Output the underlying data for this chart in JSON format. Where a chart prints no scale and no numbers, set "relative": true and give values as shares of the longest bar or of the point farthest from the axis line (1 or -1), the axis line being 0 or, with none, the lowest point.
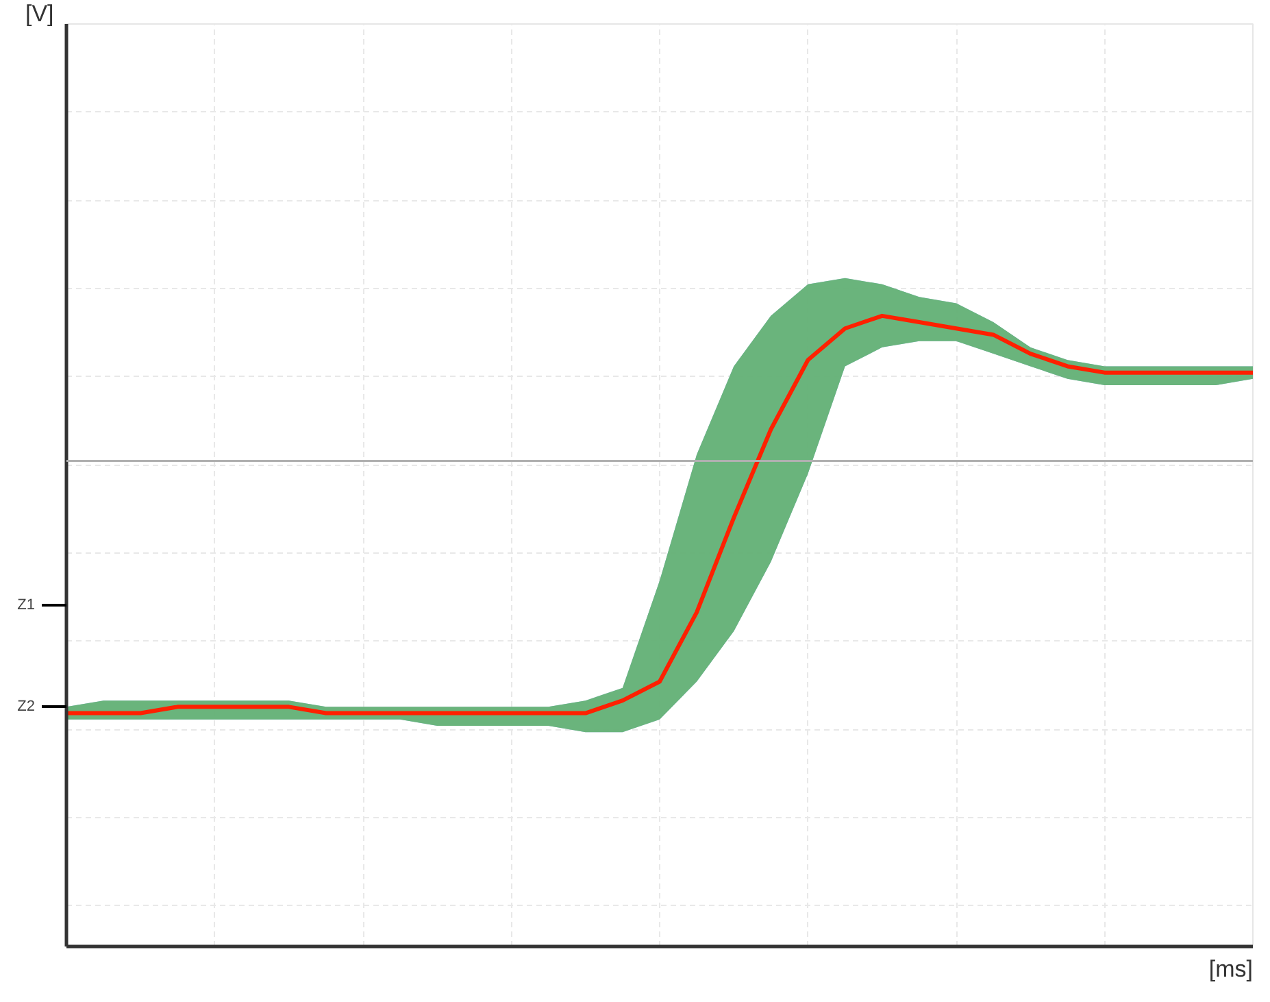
{
  "chart_data": {
    "type": "line",
    "relative": true,
    "xlabel": "[ms]",
    "categories": [
      null,
      null,
      null,
      null,
      null,
      null,
      null,
      null,
      null,
      null,
      null,
      null,
      null,
      null,
      null,
      null,
      null,
      null,
      null,
      null,
      null,
      null,
      null,
      null,
      null,
      null,
      null,
      null,
      null,
      null,
      null,
      null,
      null
    ],
    "series": [
      {
        "color": "#ff2000",
        "values": [
          0.37,
          0.37,
          0.37,
          0.38,
          0.38,
          0.38,
          0.38,
          0.37,
          0.37,
          0.37,
          0.37,
          0.37,
          0.37,
          0.37,
          0.37,
          0.39,
          0.42,
          0.53,
          0.68,
          0.82,
          0.93,
          0.98,
          1.0,
          0.99,
          0.98,
          0.97,
          0.94,
          0.92,
          0.91,
          0.91,
          0.91,
          0.91,
          0.91
        ],
        "lower": [
          0.36,
          0.36,
          0.36,
          0.36,
          0.36,
          0.36,
          0.36,
          0.36,
          0.36,
          0.36,
          0.35,
          0.35,
          0.35,
          0.35,
          0.34,
          0.34,
          0.36,
          0.42,
          0.5,
          0.61,
          0.75,
          0.92,
          0.95,
          0.96,
          0.96,
          0.94,
          0.92,
          0.9,
          0.89,
          0.89,
          0.89,
          0.89,
          0.9
        ],
        "upper": [
          0.38,
          0.39,
          0.39,
          0.39,
          0.39,
          0.39,
          0.39,
          0.38,
          0.38,
          0.38,
          0.38,
          0.38,
          0.38,
          0.38,
          0.39,
          0.41,
          0.58,
          0.78,
          0.92,
          1.0,
          1.05,
          1.06,
          1.05,
          1.03,
          1.02,
          0.99,
          0.95,
          0.93,
          0.92,
          0.92,
          0.92,
          0.92,
          0.92
        ]
      }
    ],
    "annotations": [
      "[V]",
      "Z1",
      "Z2"
    ],
    "ref_lines": [
      {
        "axis": "y",
        "value": 0.77,
        "color": "#b0b0b0"
      }
    ],
    "grid": true,
    "legend": false
  }
}
